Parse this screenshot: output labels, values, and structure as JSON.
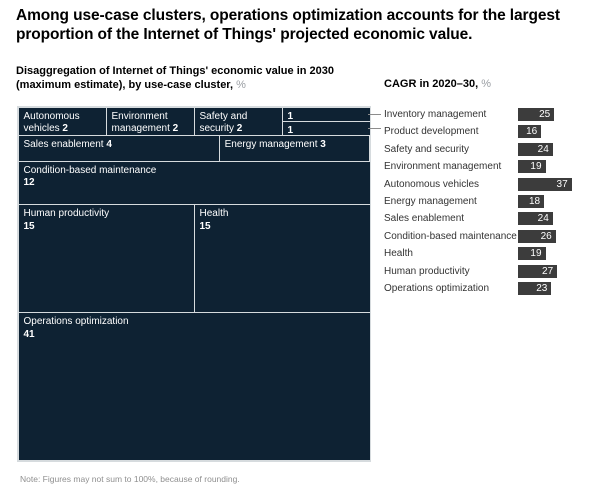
{
  "header": {
    "title": "Among use-case clusters, operations optimization accounts for the largest proportion of the Internet of Things' projected economic value.",
    "subtitle_line1": "Disaggregation of Internet of Things' economic value in 2030",
    "subtitle_line2": "(maximum estimate), by use-case cluster,",
    "subtitle_unit": "%",
    "cagr_title": "CAGR in 2020–30,",
    "cagr_unit": "%"
  },
  "chart_data": [
    {
      "type": "treemap",
      "title": "Disaggregation of Internet of Things' economic value in 2030 (maximum estimate), by use-case cluster, %",
      "unit": "%",
      "note": "cell areas proportional to value; rows top to bottom",
      "rows": [
        {
          "cells": [
            {
              "label": "Autonomous vehicles",
              "value": 2
            },
            {
              "label": "Environment management",
              "value": 2
            },
            {
              "label": "Safety and security",
              "value": 2
            },
            {
              "stack": [
                {
                  "label": "Inventory management",
                  "value": 1,
                  "label_shown": false
                },
                {
                  "label": "Product development",
                  "value": 1,
                  "label_shown": false
                }
              ]
            }
          ]
        },
        {
          "cells": [
            {
              "label": "Sales enablement",
              "value": 4
            },
            {
              "label": "Energy management",
              "value": 3
            }
          ]
        },
        {
          "cells": [
            {
              "label": "Condition-based maintenance",
              "value": 12
            }
          ]
        },
        {
          "cells": [
            {
              "label": "Human productivity",
              "value": 15
            },
            {
              "label": "Health",
              "value": 15
            }
          ]
        },
        {
          "cells": [
            {
              "label": "Operations optimization",
              "value": 41
            }
          ]
        }
      ]
    },
    {
      "type": "bar",
      "orientation": "horizontal",
      "title": "CAGR in 2020–30, %",
      "categories": [
        "Inventory management",
        "Product development",
        "Safety and security",
        "Environment management",
        "Autonomous vehicles",
        "Energy management",
        "Sales enablement",
        "Condition-based maintenance",
        "Health",
        "Human productivity",
        "Operations optimization"
      ],
      "values": [
        25,
        16,
        24,
        19,
        37,
        18,
        24,
        26,
        19,
        27,
        23
      ],
      "xlim": [
        0,
        40
      ],
      "value_labels": "inside-right",
      "legend": "none",
      "grid": false
    }
  ],
  "footnote": "Note: Figures may not sum to 100%, because of rounding.",
  "colors": {
    "cell_navy": "#0e2233",
    "cell_border": "#d6dbde",
    "bar_gray": "#3c3c3c",
    "unit_gray": "#9a9ea3",
    "cell_text": "#ffffff",
    "cagr_label_text": "#333333",
    "footnote_text": "#8f8f8f"
  }
}
